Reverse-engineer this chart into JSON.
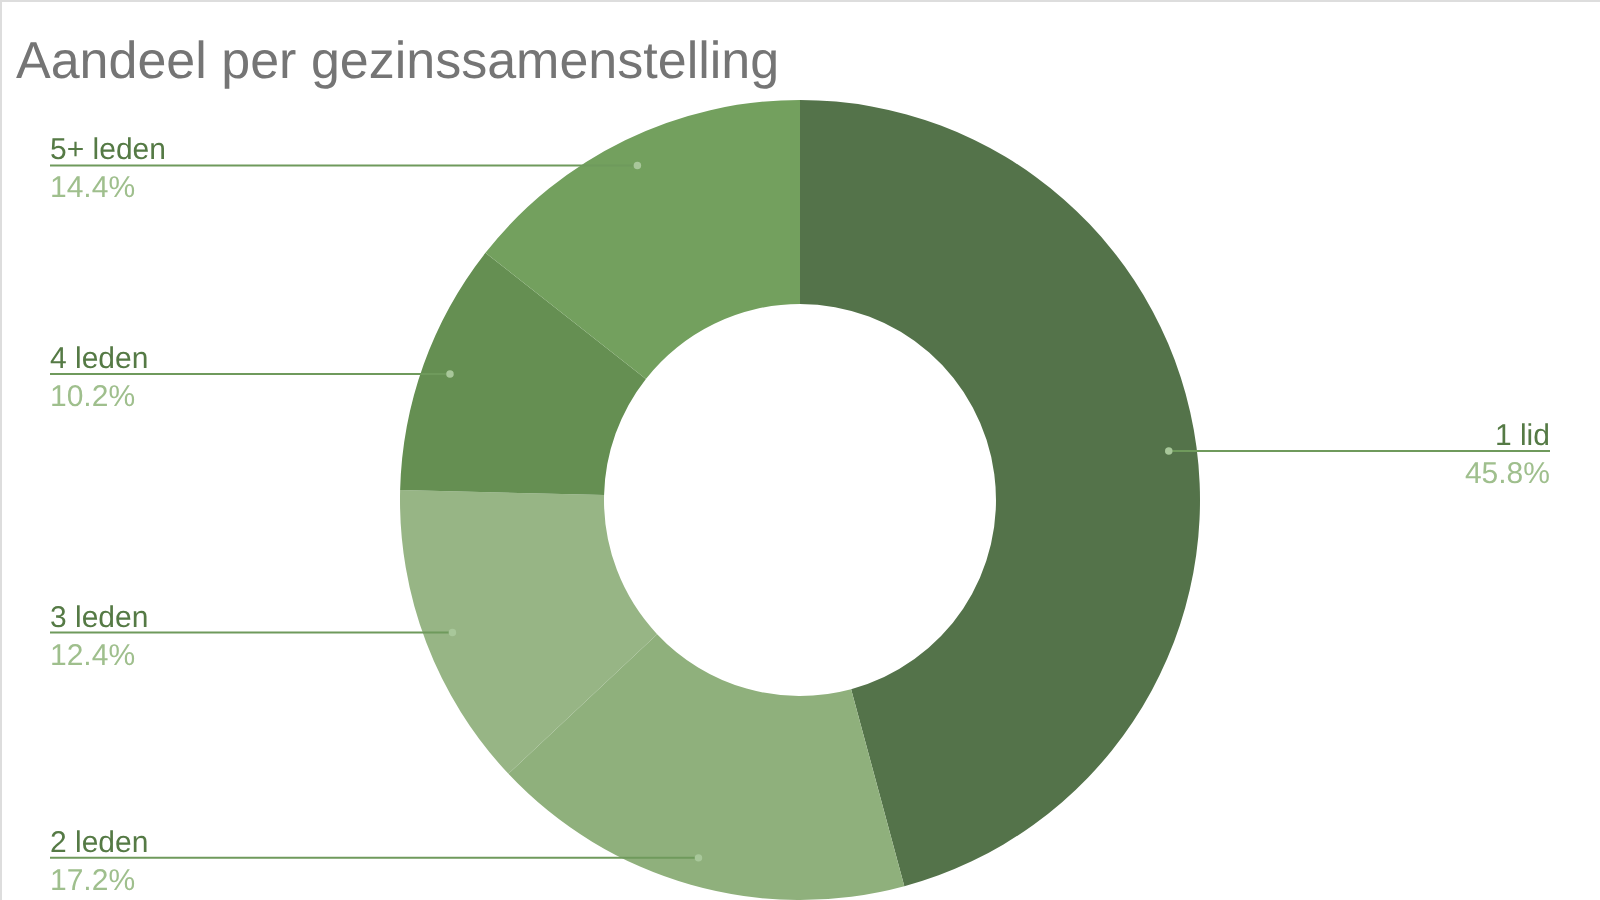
{
  "chart_data": {
    "type": "donut",
    "title": "Aandeel per gezinssamenstelling",
    "categories": [
      "1 lid",
      "2 leden",
      "3 leden",
      "4 leden",
      "5+ leden"
    ],
    "values": [
      45.8,
      17.2,
      12.4,
      10.2,
      14.4
    ],
    "value_labels": [
      "45.8%",
      "17.2%",
      "12.4%",
      "10.2%",
      "14.4%"
    ],
    "colors": [
      "#54734a",
      "#8fb07c",
      "#97b585",
      "#658f52",
      "#73a05e"
    ]
  }
}
